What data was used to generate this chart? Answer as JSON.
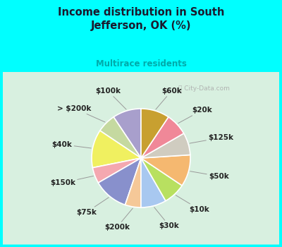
{
  "title": "Income distribution in South\nJefferson, OK (%)",
  "subtitle": "Multirace residents",
  "title_color": "#1a1a2e",
  "subtitle_color": "#00aaaa",
  "background_color": "#00ffff",
  "watermark": "City-Data.com",
  "labels": [
    "$100k",
    "> $200k",
    "$40k",
    "$150k",
    "$75k",
    "$200k",
    "$30k",
    "$10k",
    "$50k",
    "$125k",
    "$20k",
    "$60k"
  ],
  "values": [
    9,
    6,
    12,
    5,
    11,
    5,
    8,
    7,
    10,
    7,
    7,
    9
  ],
  "colors": [
    "#a89fcc",
    "#c5d9a0",
    "#f0f060",
    "#f4a8b0",
    "#8890cc",
    "#f5c898",
    "#a8c8f0",
    "#b8e060",
    "#f5b870",
    "#d0ccc0",
    "#f08898",
    "#c8a030"
  ],
  "startangle": 90,
  "wedge_edge_color": "white",
  "label_fontsize": 7.5,
  "label_color": "#222222"
}
